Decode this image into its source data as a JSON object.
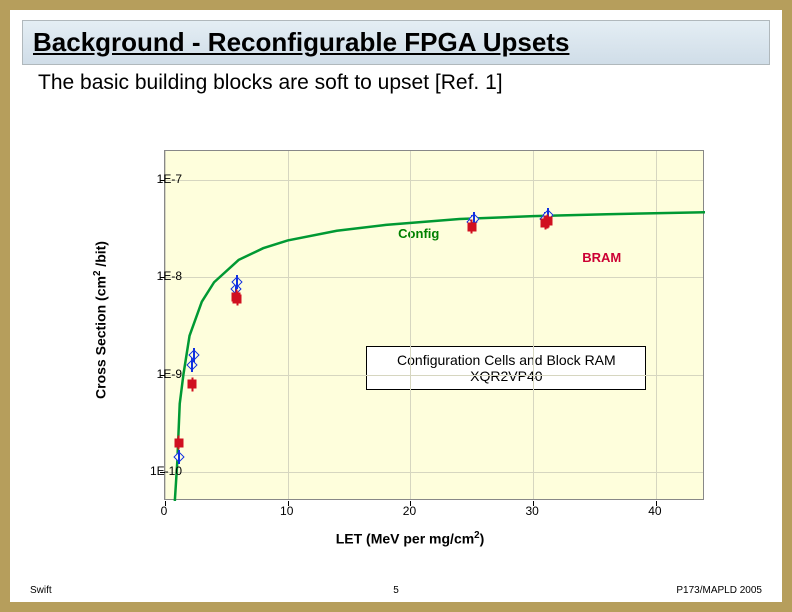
{
  "title": "Background  -  Reconfigurable FPGA Upsets",
  "subtitle": "The basic building blocks are soft to upset [Ref. 1]",
  "footer": {
    "left": "Swift",
    "mid": "5",
    "right": "P173/MAPLD 2005"
  },
  "chart": {
    "type": "line+scatter",
    "background_color": "#fefedc",
    "grid_color": "#d6d6c0",
    "xlabel": "LET (MeV per mg/cm²)",
    "ylabel": "Cross Section (cm² /bit)",
    "xlim": [
      0,
      44
    ],
    "ylim_log10": [
      -10.3,
      -6.7
    ],
    "xticks": [
      0,
      10,
      20,
      30,
      40
    ],
    "yticks_labels": [
      "1E-10",
      "1E-9",
      "1E-8",
      "1E-7"
    ],
    "yticks_log10": [
      -10,
      -9,
      -8,
      -7
    ],
    "curve": {
      "color": "#009933",
      "width": 2.5,
      "points_log10y": [
        [
          0.8,
          -10.3
        ],
        [
          1.0,
          -9.9
        ],
        [
          1.2,
          -9.3
        ],
        [
          1.5,
          -9.0
        ],
        [
          2.0,
          -8.6
        ],
        [
          3.0,
          -8.25
        ],
        [
          4.0,
          -8.05
        ],
        [
          6.0,
          -7.82
        ],
        [
          8.0,
          -7.7
        ],
        [
          10.0,
          -7.62
        ],
        [
          14.0,
          -7.52
        ],
        [
          18.0,
          -7.46
        ],
        [
          24.0,
          -7.4
        ],
        [
          30.0,
          -7.37
        ],
        [
          36.0,
          -7.35
        ],
        [
          44.0,
          -7.33
        ]
      ]
    },
    "series": [
      {
        "name": "Config",
        "marker_shape": "diamond",
        "marker_border": "#1030e0",
        "marker_fill": "none",
        "errorbar_color": "#1030e0",
        "points_log10y": [
          [
            1.1,
            -9.85
          ],
          [
            2.2,
            -8.9
          ],
          [
            2.4,
            -8.8
          ],
          [
            5.8,
            -8.12
          ],
          [
            5.9,
            -8.05
          ],
          [
            25.0,
            -7.43
          ],
          [
            25.2,
            -7.4
          ],
          [
            31.0,
            -7.4
          ],
          [
            31.2,
            -7.36
          ]
        ]
      },
      {
        "name": "BRAM",
        "marker_shape": "square",
        "marker_fill": "#d01020",
        "errorbar_color": "#d01020",
        "points_log10y": [
          [
            1.1,
            -9.7
          ],
          [
            2.2,
            -9.1
          ],
          [
            5.8,
            -8.2
          ],
          [
            5.9,
            -8.22
          ],
          [
            25.0,
            -7.48
          ],
          [
            31.0,
            -7.44
          ],
          [
            31.2,
            -7.42
          ]
        ]
      }
    ],
    "annotations": {
      "config": {
        "text": "Config",
        "x": 19,
        "log10y": -7.55
      },
      "bram": {
        "text": "BRAM",
        "x": 34,
        "log10y": -7.8
      }
    },
    "caption_box": {
      "line1": "Configuration Cells and Block RAM",
      "line2": "XQR2VP40",
      "x": 27,
      "log10y": -8.95
    }
  },
  "colors": {
    "frame": "#b69e5c",
    "title_bg_top": "#e4eef4",
    "title_bg_bottom": "#d0dde8"
  }
}
